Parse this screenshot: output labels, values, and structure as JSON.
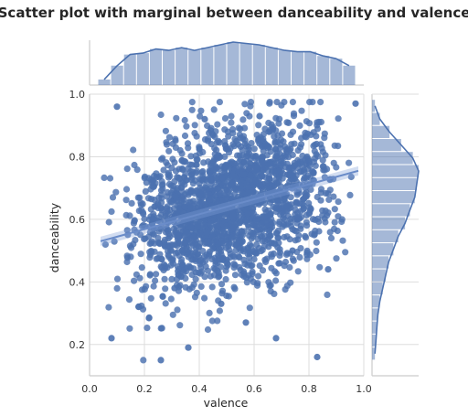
{
  "chart_data": {
    "type": "scatter",
    "title": "Scatter plot with marginal between danceability and valence",
    "xlabel": "valence",
    "ylabel": "danceability",
    "xlim": [
      0,
      1
    ],
    "ylim": [
      0.1,
      1
    ],
    "xticks": [
      "0.0",
      "0.2",
      "0.4",
      "0.6",
      "0.8",
      "1.0"
    ],
    "yticks": [
      "0.2",
      "0.4",
      "0.6",
      "0.8",
      "1.0"
    ],
    "grid": true,
    "point_color": "#4c72b0",
    "regression_line": {
      "x": [
        0.04,
        0.98
      ],
      "y": [
        0.53,
        0.755
      ]
    },
    "sample_points": [
      {
        "x": 0.1,
        "y": 0.96
      },
      {
        "x": 0.97,
        "y": 0.97
      },
      {
        "x": 0.08,
        "y": 0.22
      },
      {
        "x": 0.26,
        "y": 0.15
      },
      {
        "x": 0.83,
        "y": 0.16
      },
      {
        "x": 0.48,
        "y": 0.33
      },
      {
        "x": 0.36,
        "y": 0.19
      },
      {
        "x": 0.57,
        "y": 0.27
      },
      {
        "x": 0.68,
        "y": 0.22
      },
      {
        "x": 0.87,
        "y": 0.44
      },
      {
        "x": 0.74,
        "y": 0.5
      },
      {
        "x": 0.31,
        "y": 0.38
      },
      {
        "x": 0.55,
        "y": 0.86
      },
      {
        "x": 0.62,
        "y": 0.93
      },
      {
        "x": 0.42,
        "y": 0.92
      }
    ],
    "marginal_x": {
      "bin_edges": [
        0.03,
        0.077,
        0.124,
        0.171,
        0.218,
        0.265,
        0.312,
        0.359,
        0.406,
        0.453,
        0.5,
        0.547,
        0.594,
        0.641,
        0.688,
        0.735,
        0.782,
        0.829,
        0.876,
        0.923,
        0.97
      ],
      "counts": [
        4,
        14,
        22,
        23,
        26,
        25,
        27,
        25,
        27,
        29,
        31,
        30,
        29,
        27,
        25,
        24,
        24,
        21,
        19,
        14
      ]
    },
    "marginal_y": {
      "bin_edges": [
        0.15,
        0.1917,
        0.2333,
        0.275,
        0.3167,
        0.3583,
        0.4,
        0.4417,
        0.4833,
        0.525,
        0.5667,
        0.6083,
        0.65,
        0.6917,
        0.7333,
        0.775,
        0.8167,
        0.8583,
        0.9,
        0.9417,
        0.9833
      ],
      "counts": [
        3,
        4,
        5,
        6,
        8,
        11,
        14,
        17,
        22,
        27,
        34,
        39,
        44,
        46,
        48,
        42,
        30,
        18,
        8,
        3
      ]
    }
  }
}
